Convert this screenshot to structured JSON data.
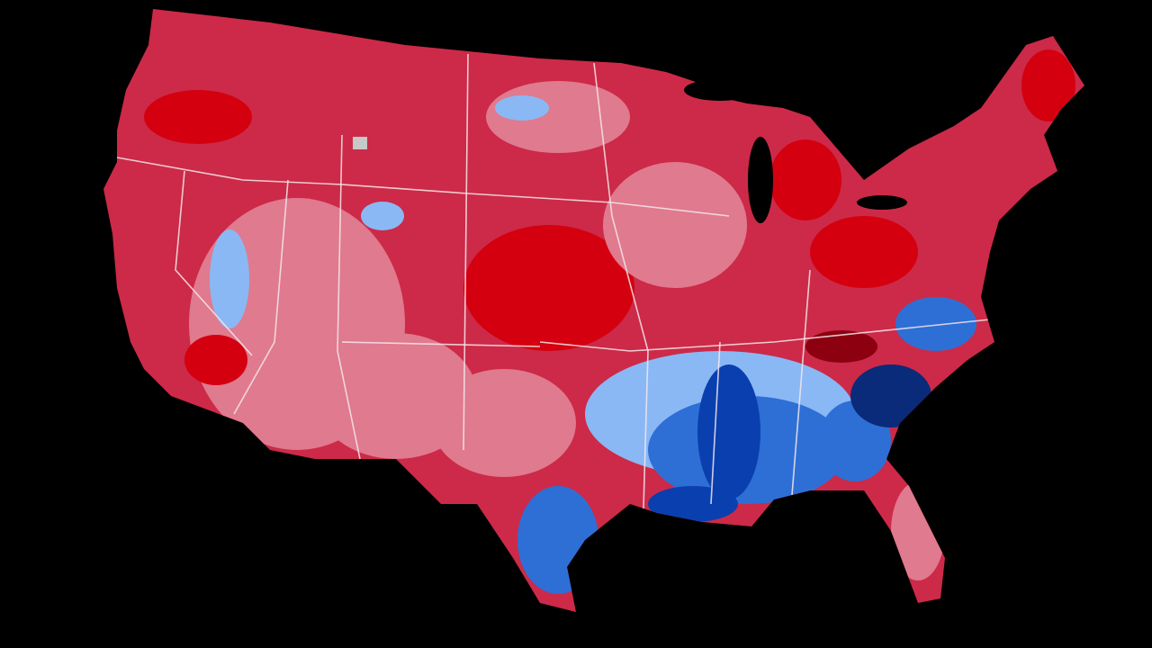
{
  "map": {
    "background": "#000000",
    "colors": {
      "strong_red": "#d40010",
      "red": "#cc2a48",
      "light_red": "#e07a8e",
      "dark_red": "#8c0010",
      "strong_blue": "#0a3fb0",
      "blue": "#2e6fd6",
      "light_blue": "#8ab8f5",
      "dark_blue": "#0a2a7a",
      "no_data": "#c8c8c8",
      "border": "#f3e6ea"
    }
  }
}
